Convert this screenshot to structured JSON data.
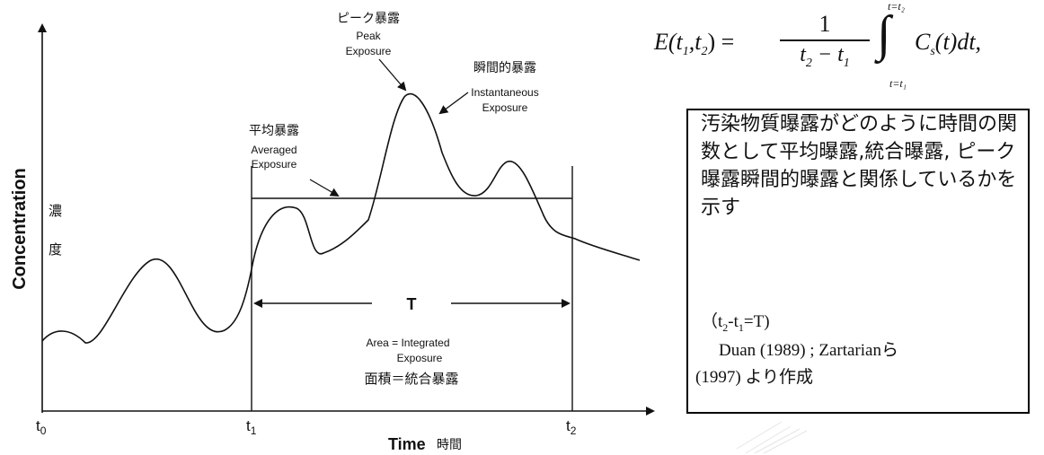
{
  "graph": {
    "y_label": "Concentration",
    "y_label_jp_1": "濃",
    "y_label_jp_2": "度",
    "x_label": "Time",
    "x_label_jp": "時間",
    "t0": "t",
    "t0_sub": "0",
    "t1": "t",
    "t1_sub": "1",
    "t2": "t",
    "t2_sub": "2",
    "peak_jp": "ピーク暴露",
    "peak_en_1": "Peak",
    "peak_en_2": "Exposure",
    "inst_jp": "瞬間的暴露",
    "inst_en_1": "Instantaneous",
    "inst_en_2": "Exposure",
    "avg_jp": "平均暴露",
    "avg_en_1": "Averaged",
    "avg_en_2": "Exposure",
    "interval_label": "T",
    "area_en_1": "Area = Integrated",
    "area_en_2": "Exposure",
    "area_jp": "面積＝統合暴露"
  },
  "formula": {
    "lhs": "E(t",
    "lhs_sub1": "1",
    "lhs_mid": ",t",
    "lhs_sub2": "2",
    "lhs_end": ") =",
    "numerator": "1",
    "denominator": "t",
    "den_sub2": "2",
    "den_mid": " − t",
    "den_sub1": "1",
    "upper_limit": "t=t₂",
    "lower_limit": "t=t₁",
    "integrand": "C",
    "integrand_sub": "s",
    "integrand_end": "(t)dt,"
  },
  "caption": {
    "main": "汚染物質曝露がどのように時間の関数として平均曝露,統合曝露, ピーク曝露瞬間的曝露と関係しているかを示す",
    "param_open": "（t",
    "param_sub2": "2",
    "param_mid": "-t",
    "param_sub1": "1",
    "param_end": "=T)",
    "source_1": "Duan (1989) ; Zartarianら",
    "source_2": "(1997) より作成"
  }
}
